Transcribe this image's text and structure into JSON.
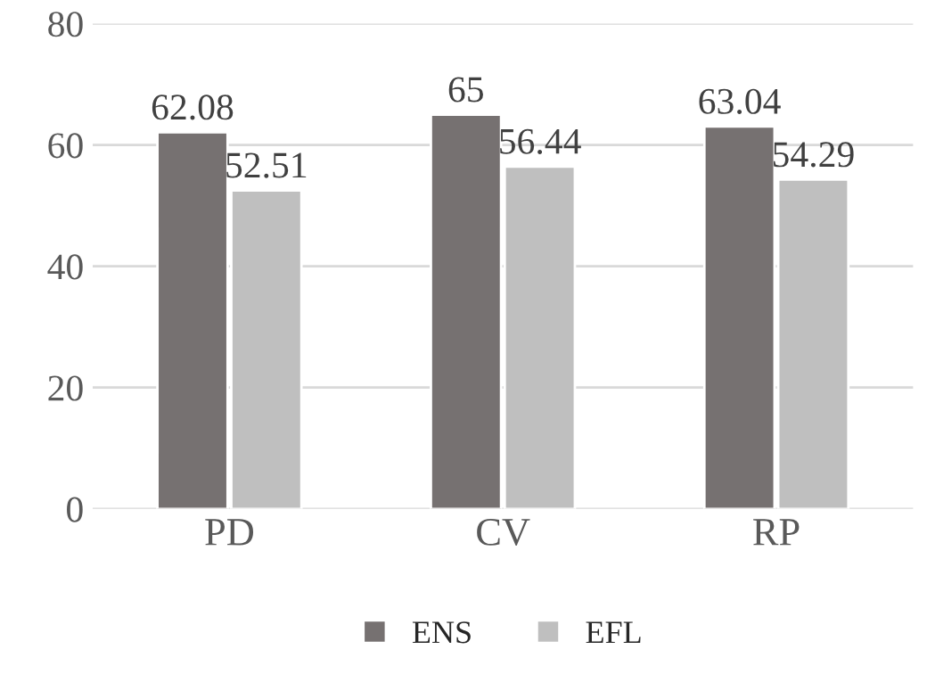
{
  "chart_data": {
    "type": "bar",
    "categories": [
      "PD",
      "CV",
      "RP"
    ],
    "series": [
      {
        "name": "ENS",
        "color": "#767171",
        "values": [
          62.08,
          65,
          63.04
        ]
      },
      {
        "name": "EFL",
        "color": "#bfbfbf",
        "values": [
          52.51,
          56.44,
          54.29
        ]
      }
    ],
    "ylim": [
      0,
      80
    ],
    "yticks": [
      0,
      20,
      40,
      60,
      80
    ],
    "grid": "y",
    "legend": "bottom",
    "data_labels": true
  }
}
